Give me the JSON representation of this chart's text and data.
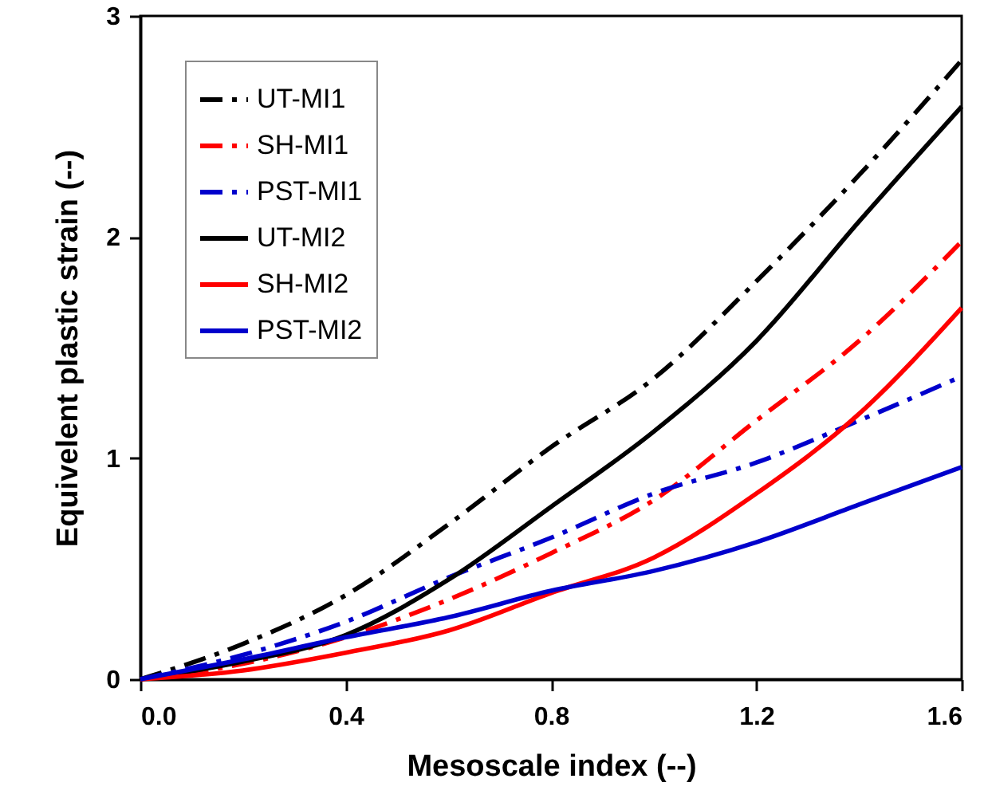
{
  "chart_data": {
    "type": "line",
    "xlabel": "Mesoscale index (--)",
    "ylabel": "Equivelent plastic strain (--)",
    "x": [
      0,
      0.2,
      0.4,
      0.6,
      0.8,
      1.0,
      1.2,
      1.4,
      1.6
    ],
    "series": [
      {
        "name": "UT-MI1",
        "color": "#000000",
        "line_style": "dashed",
        "values": [
          0,
          0.16,
          0.38,
          0.7,
          1.05,
          1.36,
          1.8,
          2.28,
          2.8
        ]
      },
      {
        "name": "SH-MI1",
        "color": "#ff0000",
        "line_style": "dashed",
        "values": [
          0,
          0.07,
          0.19,
          0.36,
          0.57,
          0.81,
          1.17,
          1.53,
          1.98
        ]
      },
      {
        "name": "PST-MI1",
        "color": "#0000cc",
        "line_style": "dashed",
        "values": [
          0,
          0.11,
          0.26,
          0.46,
          0.64,
          0.84,
          0.98,
          1.17,
          1.37
        ]
      },
      {
        "name": "UT-MI2",
        "color": "#000000",
        "line_style": "solid",
        "values": [
          0,
          0.08,
          0.2,
          0.45,
          0.78,
          1.12,
          1.53,
          2.07,
          2.59
        ]
      },
      {
        "name": "SH-MI2",
        "color": "#ff0000",
        "line_style": "solid",
        "values": [
          0,
          0.04,
          0.12,
          0.22,
          0.39,
          0.55,
          0.84,
          1.2,
          1.68
        ]
      },
      {
        "name": "PST-MI2",
        "color": "#0000cc",
        "line_style": "solid",
        "values": [
          0,
          0.09,
          0.19,
          0.28,
          0.4,
          0.49,
          0.62,
          0.79,
          0.96
        ]
      }
    ],
    "xlim": [
      0,
      1.6
    ],
    "xticks": [
      {
        "value": 0,
        "label": "0.0"
      },
      {
        "value": 0.4,
        "label": "0.4"
      },
      {
        "value": 0.8,
        "label": "0.8"
      },
      {
        "value": 1.2,
        "label": "1.2"
      },
      {
        "value": 1.6,
        "label": "1.6"
      }
    ],
    "ylim": [
      0,
      3
    ],
    "yticks": [
      0,
      1,
      2,
      3
    ],
    "legend": "top left",
    "grid": false
  }
}
